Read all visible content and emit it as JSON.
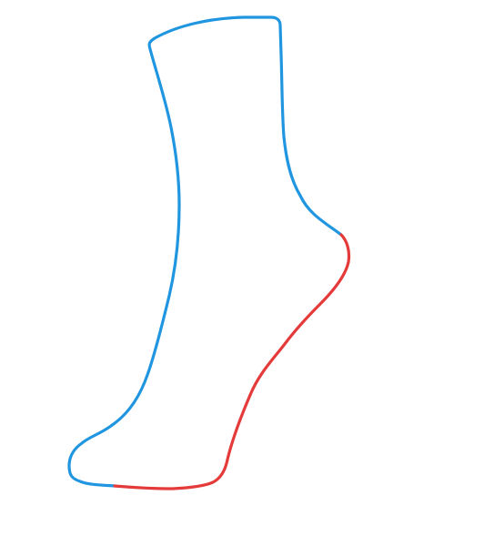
{
  "drawing": {
    "subject": "sock-outline",
    "background_color": "#ffffff",
    "strokes": [
      {
        "name": "sock-outline-stroke",
        "color": "#2196e0"
      },
      {
        "name": "sock-foot-bottom-stroke",
        "color": "#e43a3a"
      }
    ]
  }
}
